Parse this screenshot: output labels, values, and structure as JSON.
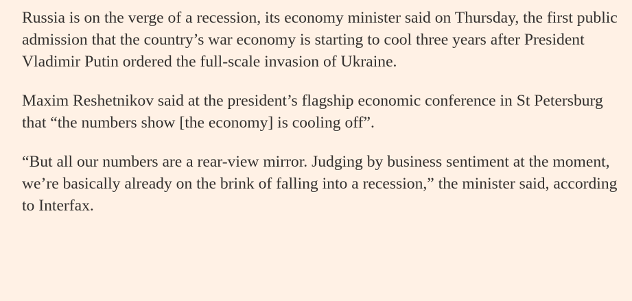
{
  "article": {
    "paragraphs": [
      "Russia is on the verge of a recession, its economy minister said on Thursday, the first public admission that the country’s war economy is starting to cool three years after President Vladimir Putin ordered the full-scale invasion of Ukraine.",
      "Maxim Reshetnikov said at the president’s flagship economic conference in St Petersburg that “the numbers show [the economy] is cooling off”.",
      "“But all our numbers are a rear-view mirror. Judging by business sentiment at the moment, we’re basically already on the brink of falling into a recession,” the minister said, according to Interfax."
    ]
  }
}
